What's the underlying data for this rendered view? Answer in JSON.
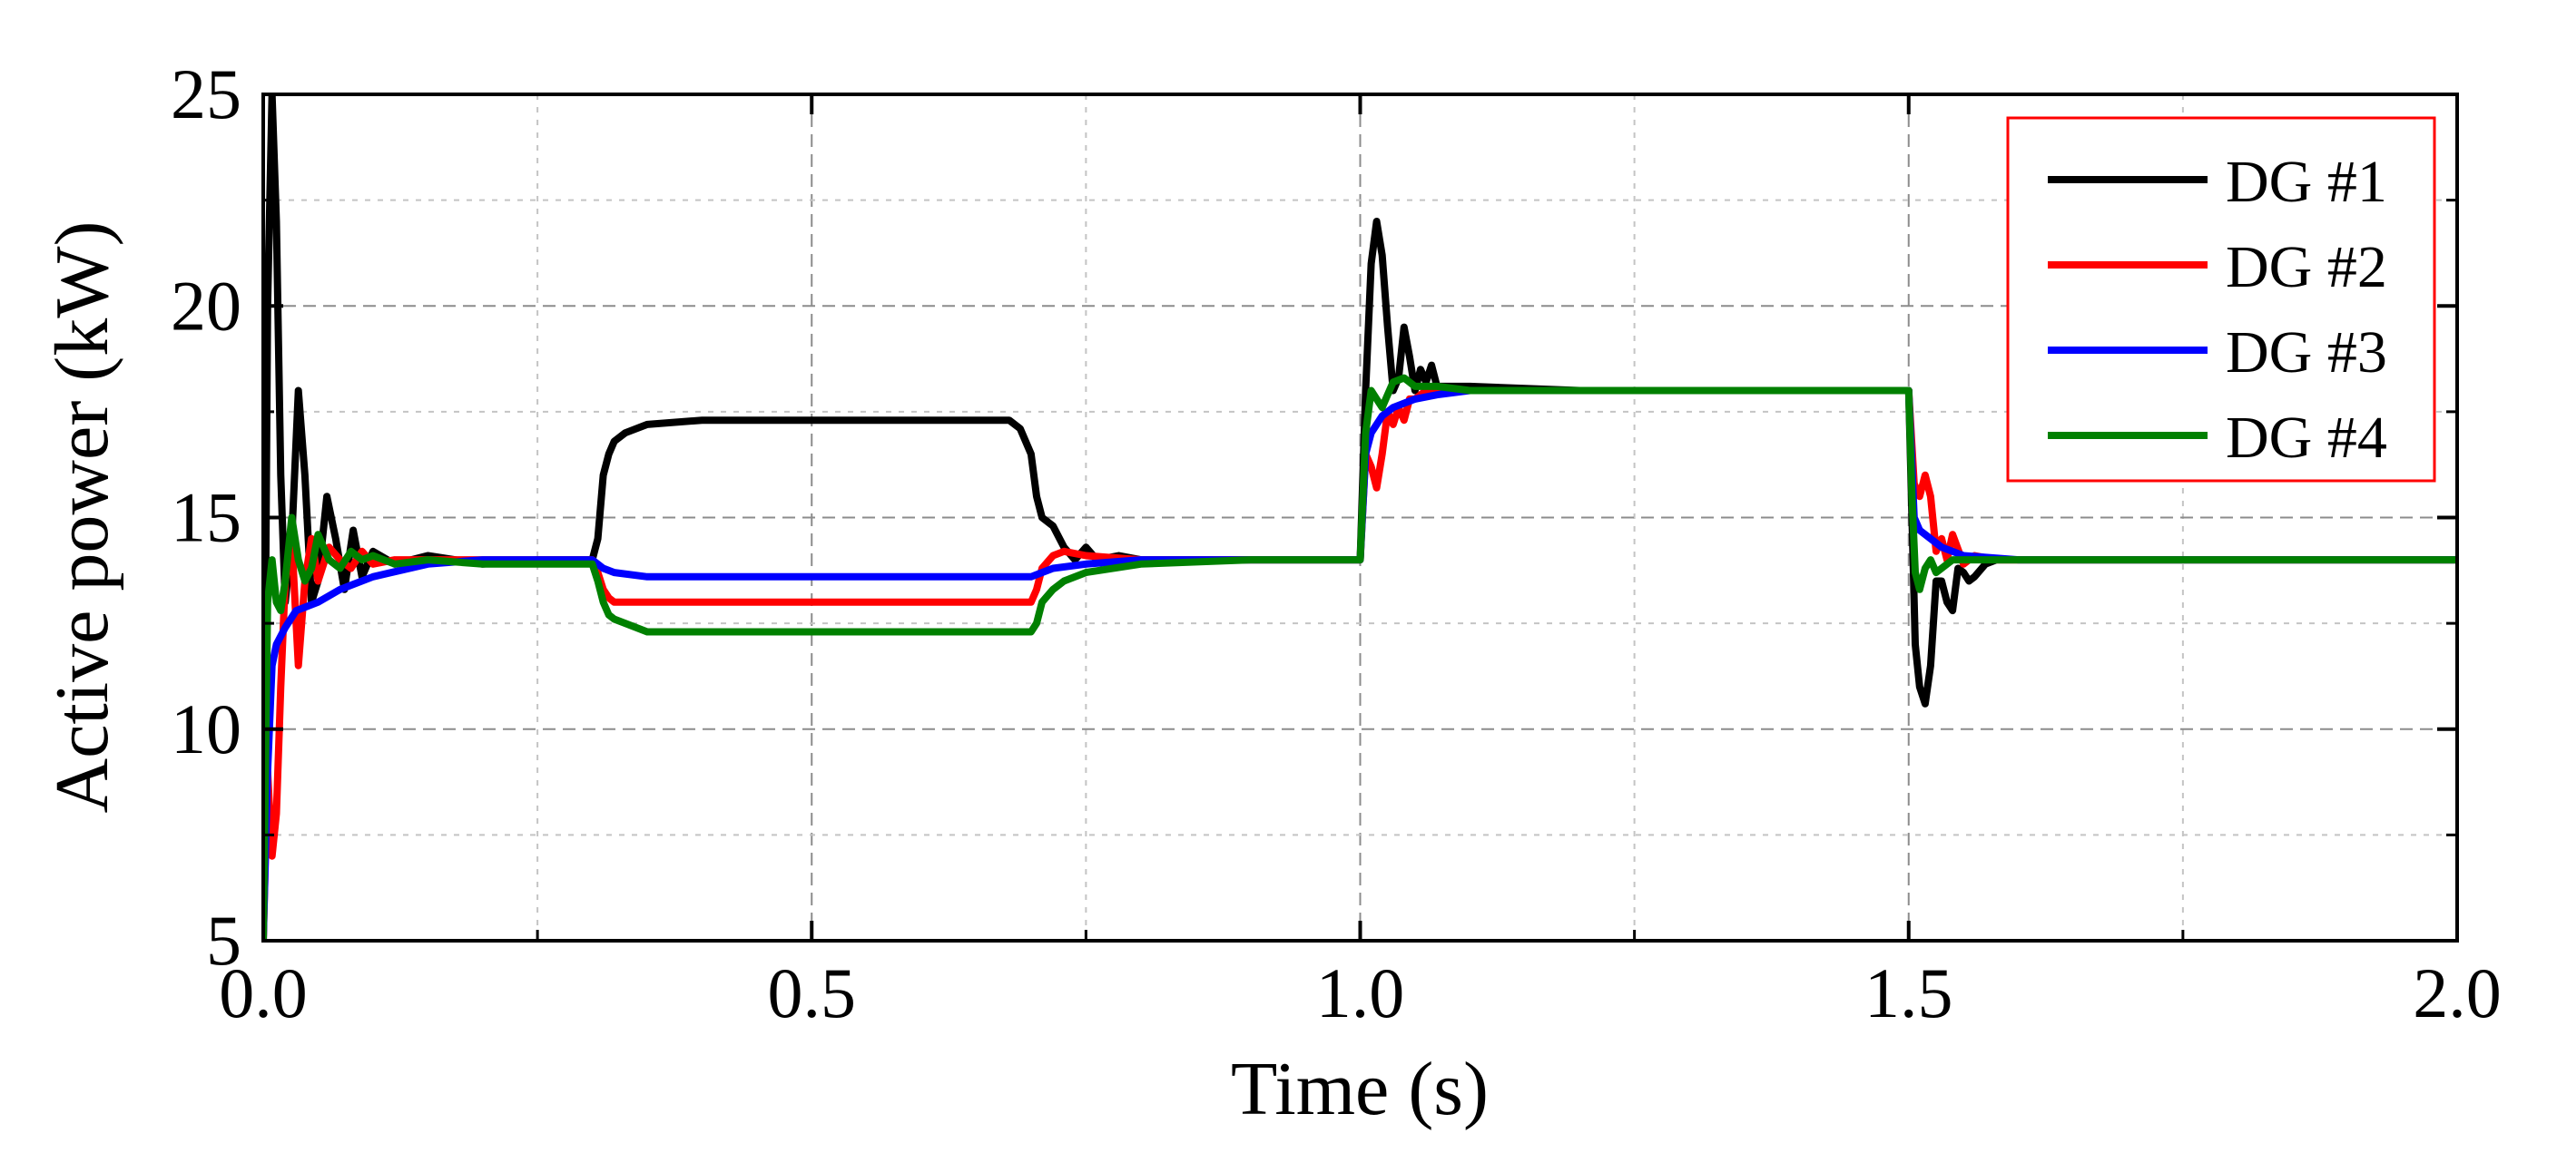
{
  "chart_data": {
    "type": "line",
    "title": "",
    "xlabel": "Time (s)",
    "ylabel": "Active power (kW)",
    "xlim": [
      0.0,
      2.0
    ],
    "ylim": [
      5,
      25
    ],
    "x_ticks": [
      0.0,
      0.5,
      1.0,
      1.5,
      2.0
    ],
    "x_tick_labels": [
      "0.0",
      "0.5",
      "1.0",
      "1.5",
      "2.0"
    ],
    "y_ticks": [
      5,
      10,
      15,
      20,
      25
    ],
    "y_tick_labels": [
      "5",
      "10",
      "15",
      "20",
      "25"
    ],
    "grid": true,
    "legend_position": "top-right",
    "series": [
      {
        "name": "DG #1",
        "color": "#000000",
        "x": [
          0.0,
          0.004,
          0.008,
          0.012,
          0.016,
          0.02,
          0.026,
          0.032,
          0.038,
          0.044,
          0.05,
          0.058,
          0.066,
          0.074,
          0.082,
          0.09,
          0.1,
          0.12,
          0.15,
          0.2,
          0.25,
          0.3,
          0.305,
          0.31,
          0.315,
          0.32,
          0.33,
          0.35,
          0.4,
          0.5,
          0.6,
          0.68,
          0.69,
          0.7,
          0.705,
          0.71,
          0.72,
          0.73,
          0.74,
          0.75,
          0.76,
          0.78,
          0.8,
          0.9,
          1.0,
          1.005,
          1.01,
          1.015,
          1.02,
          1.025,
          1.03,
          1.035,
          1.04,
          1.045,
          1.05,
          1.055,
          1.06,
          1.065,
          1.07,
          1.08,
          1.1,
          1.2,
          1.3,
          1.4,
          1.5,
          1.503,
          1.506,
          1.51,
          1.515,
          1.52,
          1.525,
          1.53,
          1.535,
          1.54,
          1.545,
          1.55,
          1.555,
          1.56,
          1.57,
          1.58,
          1.6,
          1.7,
          1.8,
          1.9,
          2.0
        ],
        "y": [
          5.0,
          20.0,
          25.0,
          22.0,
          16.0,
          13.0,
          14.5,
          18.0,
          16.0,
          13.0,
          13.5,
          15.5,
          14.5,
          13.3,
          14.7,
          13.6,
          14.2,
          13.9,
          14.1,
          13.9,
          14.0,
          14.0,
          14.5,
          16.0,
          16.5,
          16.8,
          17.0,
          17.2,
          17.3,
          17.3,
          17.3,
          17.3,
          17.1,
          16.5,
          15.5,
          15.0,
          14.8,
          14.3,
          14.0,
          14.3,
          14.0,
          14.1,
          14.0,
          14.0,
          14.0,
          18.0,
          21.0,
          22.0,
          21.2,
          19.5,
          18.0,
          18.3,
          19.5,
          18.8,
          18.0,
          18.5,
          18.2,
          18.6,
          18.1,
          18.1,
          18.1,
          18.0,
          18.0,
          18.0,
          18.0,
          15.0,
          12.0,
          11.0,
          10.6,
          11.5,
          13.5,
          13.5,
          13.0,
          12.8,
          13.8,
          13.7,
          13.5,
          13.6,
          13.9,
          14.0,
          14.0,
          14.0,
          14.0,
          14.0,
          14.0
        ]
      },
      {
        "name": "DG #2",
        "color": "#ff0000",
        "x": [
          0.0,
          0.004,
          0.008,
          0.012,
          0.016,
          0.02,
          0.026,
          0.032,
          0.038,
          0.044,
          0.05,
          0.06,
          0.07,
          0.08,
          0.09,
          0.1,
          0.12,
          0.15,
          0.2,
          0.25,
          0.3,
          0.305,
          0.31,
          0.315,
          0.32,
          0.35,
          0.4,
          0.5,
          0.6,
          0.7,
          0.705,
          0.71,
          0.72,
          0.73,
          0.75,
          0.8,
          0.9,
          1.0,
          1.005,
          1.01,
          1.015,
          1.02,
          1.025,
          1.03,
          1.035,
          1.04,
          1.045,
          1.05,
          1.06,
          1.08,
          1.1,
          1.2,
          1.3,
          1.4,
          1.5,
          1.505,
          1.51,
          1.515,
          1.52,
          1.525,
          1.53,
          1.535,
          1.54,
          1.55,
          1.56,
          1.58,
          1.6,
          1.7,
          1.8,
          1.9,
          2.0
        ],
        "y": [
          5.0,
          9.0,
          7.0,
          8.0,
          11.0,
          13.5,
          14.5,
          11.5,
          13.5,
          14.5,
          13.5,
          14.3,
          14.0,
          13.8,
          14.2,
          13.9,
          14.0,
          14.0,
          14.0,
          14.0,
          14.0,
          13.7,
          13.3,
          13.1,
          13.0,
          13.0,
          13.0,
          13.0,
          13.0,
          13.0,
          13.3,
          13.8,
          14.1,
          14.2,
          14.1,
          14.0,
          14.0,
          14.0,
          16.5,
          16.2,
          15.7,
          16.5,
          17.5,
          17.2,
          17.6,
          17.3,
          17.8,
          17.8,
          18.0,
          18.0,
          18.0,
          18.0,
          18.0,
          18.0,
          18.0,
          15.8,
          15.5,
          16.0,
          15.5,
          14.2,
          14.5,
          14.0,
          14.6,
          13.9,
          14.1,
          14.0,
          14.0,
          14.0,
          14.0,
          14.0,
          14.0
        ]
      },
      {
        "name": "DG #3",
        "color": "#0000ff",
        "x": [
          0.0,
          0.004,
          0.008,
          0.012,
          0.02,
          0.03,
          0.05,
          0.07,
          0.1,
          0.15,
          0.2,
          0.3,
          0.31,
          0.32,
          0.35,
          0.4,
          0.5,
          0.6,
          0.7,
          0.71,
          0.72,
          0.75,
          0.8,
          0.9,
          1.0,
          1.005,
          1.01,
          1.015,
          1.02,
          1.03,
          1.05,
          1.07,
          1.1,
          1.2,
          1.3,
          1.4,
          1.5,
          1.505,
          1.51,
          1.52,
          1.53,
          1.55,
          1.6,
          1.7,
          1.8,
          1.9,
          2.0
        ],
        "y": [
          5.0,
          9.0,
          11.5,
          12.0,
          12.4,
          12.8,
          13.0,
          13.3,
          13.6,
          13.9,
          14.0,
          14.0,
          13.8,
          13.7,
          13.6,
          13.6,
          13.6,
          13.6,
          13.6,
          13.7,
          13.8,
          13.9,
          14.0,
          14.0,
          14.0,
          16.5,
          17.0,
          17.2,
          17.4,
          17.6,
          17.8,
          17.9,
          18.0,
          18.0,
          18.0,
          18.0,
          18.0,
          15.0,
          14.7,
          14.5,
          14.3,
          14.1,
          14.0,
          14.0,
          14.0,
          14.0,
          14.0
        ]
      },
      {
        "name": "DG #4",
        "color": "#008000",
        "x": [
          0.0,
          0.004,
          0.008,
          0.012,
          0.016,
          0.02,
          0.026,
          0.032,
          0.038,
          0.044,
          0.05,
          0.06,
          0.07,
          0.08,
          0.09,
          0.1,
          0.12,
          0.15,
          0.2,
          0.25,
          0.3,
          0.305,
          0.31,
          0.315,
          0.32,
          0.33,
          0.35,
          0.4,
          0.5,
          0.6,
          0.7,
          0.705,
          0.71,
          0.72,
          0.73,
          0.75,
          0.8,
          0.9,
          1.0,
          1.005,
          1.01,
          1.015,
          1.02,
          1.025,
          1.03,
          1.04,
          1.05,
          1.07,
          1.1,
          1.2,
          1.3,
          1.4,
          1.5,
          1.503,
          1.506,
          1.51,
          1.515,
          1.52,
          1.525,
          1.53,
          1.54,
          1.55,
          1.6,
          1.7,
          1.8,
          1.9,
          2.0
        ],
        "y": [
          5.0,
          13.0,
          14.0,
          13.0,
          12.8,
          13.5,
          15.0,
          14.0,
          13.5,
          13.8,
          14.6,
          14.0,
          13.8,
          14.2,
          14.0,
          14.1,
          13.9,
          14.0,
          13.9,
          13.9,
          13.9,
          13.5,
          13.0,
          12.7,
          12.6,
          12.5,
          12.3,
          12.3,
          12.3,
          12.3,
          12.3,
          12.5,
          13.0,
          13.3,
          13.5,
          13.7,
          13.9,
          14.0,
          14.0,
          17.0,
          18.0,
          17.8,
          17.6,
          17.9,
          18.2,
          18.3,
          18.1,
          18.1,
          18.0,
          18.0,
          18.0,
          18.0,
          18.0,
          15.5,
          13.7,
          13.3,
          13.8,
          14.0,
          13.7,
          13.8,
          14.0,
          14.0,
          14.0,
          14.0,
          14.0,
          14.0,
          14.0
        ]
      }
    ]
  }
}
